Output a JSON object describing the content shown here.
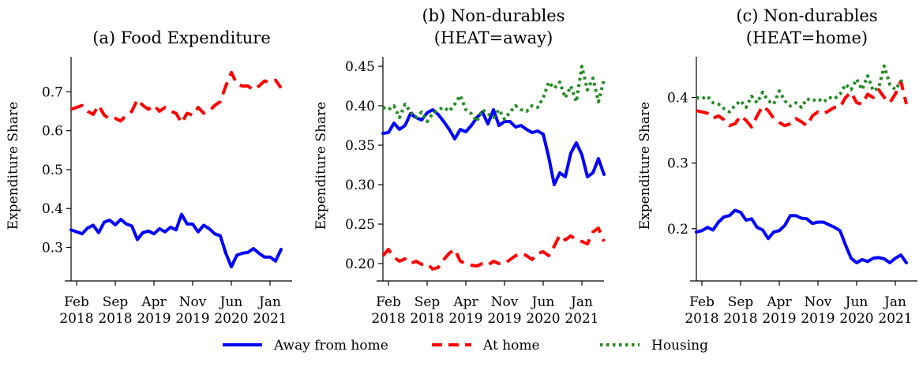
{
  "figure": {
    "legend": {
      "placement": "bottom-center",
      "entries": [
        {
          "label": "Away from home",
          "color": "#0000ff",
          "style": "solid"
        },
        {
          "label": "At home",
          "color": "#ff0000",
          "style": "dashed"
        },
        {
          "label": "Housing",
          "color": "#228b22",
          "style": "dotted"
        }
      ]
    }
  },
  "chart_data": [
    {
      "type": "line",
      "title": "(a) Food Expenditure",
      "ylabel": "Expenditure Share",
      "xlabel": "",
      "x_tick_labels": [
        [
          "Feb",
          "2018"
        ],
        [
          "Sep",
          "2018"
        ],
        [
          "Apr",
          "2019"
        ],
        [
          "Nov",
          "2019"
        ],
        [
          "Jun",
          "2020"
        ],
        [
          "Jan",
          "2021"
        ]
      ],
      "x_tick_indices": [
        1,
        8,
        15,
        22,
        29,
        36
      ],
      "x_range": [
        0,
        40
      ],
      "ylim": [
        0.23,
        0.79
      ],
      "yticks": [
        0.3,
        0.4,
        0.5,
        0.6,
        0.7
      ],
      "ytick_labels": [
        "0.3",
        "0.4",
        "0.5",
        "0.6",
        "0.7"
      ],
      "series": [
        {
          "name": "Away from home",
          "color": "#0000ff",
          "style": "solid",
          "values": [
            0.345,
            0.34,
            0.335,
            0.35,
            0.357,
            0.338,
            0.365,
            0.37,
            0.358,
            0.372,
            0.36,
            0.355,
            0.32,
            0.338,
            0.342,
            0.335,
            0.348,
            0.34,
            0.352,
            0.345,
            0.385,
            0.36,
            0.36,
            0.34,
            0.357,
            0.348,
            0.335,
            0.33,
            0.285,
            0.25,
            0.28,
            0.285,
            0.287,
            0.297,
            0.285,
            0.275,
            0.275,
            0.265,
            0.295
          ]
        },
        {
          "name": "At home",
          "color": "#ff0000",
          "style": "dashed",
          "values": [
            0.655,
            0.66,
            0.665,
            0.65,
            0.642,
            0.665,
            0.64,
            0.63,
            0.632,
            0.625,
            0.64,
            0.65,
            0.68,
            0.665,
            0.655,
            0.665,
            0.65,
            0.66,
            0.65,
            0.645,
            0.62,
            0.645,
            0.64,
            0.66,
            0.645,
            0.65,
            0.665,
            0.675,
            0.715,
            0.75,
            0.72,
            0.715,
            0.715,
            0.705,
            0.715,
            0.728,
            0.725,
            0.73,
            0.71
          ]
        }
      ]
    },
    {
      "type": "line",
      "title": "(b) Non-durables (HEAT=away)",
      "title_lines": [
        "(b) Non-durables",
        "(HEAT=away)"
      ],
      "ylabel": "Expenditure Share",
      "xlabel": "",
      "x_tick_labels": [
        [
          "Feb",
          "2018"
        ],
        [
          "Sep",
          "2018"
        ],
        [
          "Apr",
          "2019"
        ],
        [
          "Nov",
          "2019"
        ],
        [
          "Jun",
          "2020"
        ],
        [
          "Jan",
          "2021"
        ]
      ],
      "x_tick_indices": [
        1,
        8,
        15,
        22,
        29,
        36
      ],
      "x_range": [
        0,
        40
      ],
      "ylim": [
        0.186,
        0.462
      ],
      "yticks": [
        0.2,
        0.25,
        0.3,
        0.35,
        0.4,
        0.45
      ],
      "ytick_labels": [
        "0.20",
        "0.25",
        "0.30",
        "0.35",
        "0.40",
        "0.45"
      ],
      "series": [
        {
          "name": "Away from home",
          "color": "#0000ff",
          "style": "solid",
          "values": [
            0.365,
            0.366,
            0.378,
            0.37,
            0.375,
            0.39,
            0.385,
            0.382,
            0.391,
            0.395,
            0.389,
            0.38,
            0.37,
            0.358,
            0.37,
            0.367,
            0.375,
            0.385,
            0.392,
            0.377,
            0.395,
            0.375,
            0.38,
            0.38,
            0.373,
            0.375,
            0.37,
            0.366,
            0.368,
            0.364,
            0.335,
            0.3,
            0.315,
            0.31,
            0.34,
            0.353,
            0.338,
            0.31,
            0.315,
            0.333,
            0.313
          ]
        },
        {
          "name": "At home",
          "color": "#ff0000",
          "style": "dashed",
          "values": [
            0.21,
            0.218,
            0.208,
            0.203,
            0.206,
            0.2,
            0.203,
            0.199,
            0.2,
            0.193,
            0.195,
            0.205,
            0.213,
            0.218,
            0.203,
            0.2,
            0.198,
            0.197,
            0.2,
            0.198,
            0.203,
            0.2,
            0.2,
            0.205,
            0.21,
            0.213,
            0.21,
            0.205,
            0.213,
            0.215,
            0.21,
            0.222,
            0.236,
            0.23,
            0.235,
            0.23,
            0.228,
            0.225,
            0.24,
            0.245,
            0.228
          ]
        },
        {
          "name": "Housing",
          "color": "#228b22",
          "style": "dotted",
          "values": [
            0.398,
            0.395,
            0.4,
            0.385,
            0.402,
            0.392,
            0.385,
            0.392,
            0.38,
            0.39,
            0.395,
            0.398,
            0.393,
            0.402,
            0.413,
            0.395,
            0.39,
            0.38,
            0.395,
            0.39,
            0.385,
            0.395,
            0.383,
            0.392,
            0.4,
            0.395,
            0.393,
            0.4,
            0.398,
            0.41,
            0.43,
            0.422,
            0.43,
            0.41,
            0.425,
            0.405,
            0.45,
            0.42,
            0.435,
            0.405,
            0.433
          ]
        }
      ]
    },
    {
      "type": "line",
      "title": "(c) Non-durables (HEAT=home)",
      "title_lines": [
        "(c) Non-durables",
        "(HEAT=home)"
      ],
      "ylabel": "Expenditure Share",
      "xlabel": "",
      "x_tick_labels": [
        [
          "Feb",
          "2018"
        ],
        [
          "Sep",
          "2018"
        ],
        [
          "Apr",
          "2019"
        ],
        [
          "Nov",
          "2019"
        ],
        [
          "Jun",
          "2020"
        ],
        [
          "Jan",
          "2021"
        ]
      ],
      "x_tick_indices": [
        1,
        8,
        15,
        22,
        29,
        36
      ],
      "x_range": [
        0,
        40
      ],
      "ylim": [
        0.13,
        0.462
      ],
      "yticks": [
        0.2,
        0.3,
        0.4
      ],
      "ytick_labels": [
        "0.2",
        "0.3",
        "0.4"
      ],
      "series": [
        {
          "name": "Away from home",
          "color": "#0000ff",
          "style": "solid",
          "values": [
            0.195,
            0.197,
            0.202,
            0.198,
            0.21,
            0.218,
            0.22,
            0.228,
            0.225,
            0.213,
            0.215,
            0.202,
            0.198,
            0.185,
            0.195,
            0.197,
            0.205,
            0.22,
            0.22,
            0.216,
            0.215,
            0.208,
            0.21,
            0.21,
            0.206,
            0.202,
            0.197,
            0.175,
            0.155,
            0.148,
            0.153,
            0.15,
            0.155,
            0.156,
            0.154,
            0.148,
            0.155,
            0.16,
            0.148
          ]
        },
        {
          "name": "At home",
          "color": "#ff0000",
          "style": "dashed",
          "values": [
            0.38,
            0.378,
            0.376,
            0.368,
            0.372,
            0.366,
            0.357,
            0.36,
            0.372,
            0.365,
            0.355,
            0.372,
            0.387,
            0.38,
            0.368,
            0.362,
            0.357,
            0.36,
            0.368,
            0.363,
            0.357,
            0.372,
            0.378,
            0.375,
            0.38,
            0.385,
            0.385,
            0.4,
            0.408,
            0.392,
            0.39,
            0.405,
            0.4,
            0.412,
            0.4,
            0.392,
            0.405,
            0.425,
            0.39
          ]
        },
        {
          "name": "Housing",
          "color": "#228b22",
          "style": "dotted",
          "values": [
            0.4,
            0.398,
            0.402,
            0.392,
            0.39,
            0.383,
            0.378,
            0.388,
            0.395,
            0.385,
            0.402,
            0.392,
            0.408,
            0.395,
            0.39,
            0.41,
            0.395,
            0.387,
            0.392,
            0.385,
            0.398,
            0.395,
            0.398,
            0.393,
            0.4,
            0.398,
            0.405,
            0.42,
            0.412,
            0.428,
            0.412,
            0.433,
            0.41,
            0.415,
            0.448,
            0.42,
            0.412,
            0.425,
            0.425
          ]
        }
      ]
    }
  ]
}
